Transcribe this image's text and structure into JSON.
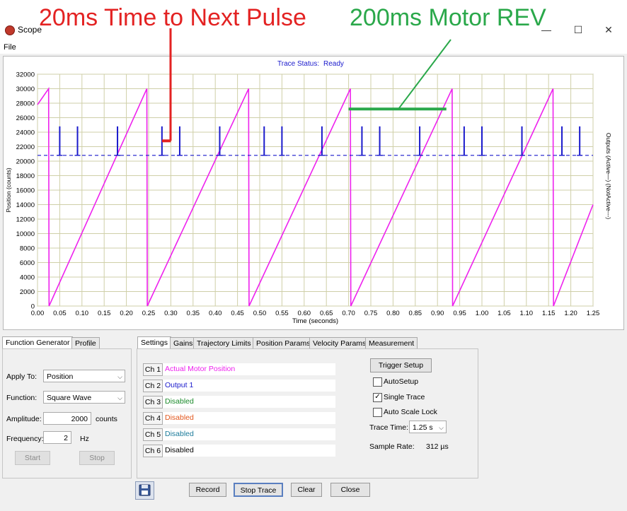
{
  "window": {
    "title": "Scope",
    "menu": [
      "File"
    ],
    "controls": [
      "—",
      "☐",
      "✕"
    ]
  },
  "annotations": {
    "left": "20ms Time to Next Pulse",
    "right": "200ms Motor REV",
    "left_color": "#e32222",
    "right_color": "#2aa84a"
  },
  "trace_status": {
    "label": "Trace Status:",
    "value": "Ready"
  },
  "chart_data": {
    "type": "line",
    "xlabel": "Time (seconds)",
    "ylabel": "Position (counts)",
    "y2label": "Outputs (Active—) (NotActive---)",
    "xlim": [
      0,
      1.25
    ],
    "ylim": [
      0,
      32000
    ],
    "x_ticks": [
      "0.00",
      "0.05",
      "0.10",
      "0.15",
      "0.20",
      "0.25",
      "0.30",
      "0.35",
      "0.40",
      "0.45",
      "0.50",
      "0.55",
      "0.60",
      "0.65",
      "0.70",
      "0.75",
      "0.80",
      "0.85",
      "0.90",
      "0.95",
      "1.00",
      "1.05",
      "1.10",
      "1.15",
      "1.20",
      "1.25"
    ],
    "y_ticks": [
      "0",
      "2000",
      "4000",
      "6000",
      "8000",
      "10000",
      "12000",
      "14000",
      "16000",
      "18000",
      "20000",
      "22000",
      "24000",
      "26000",
      "28000",
      "30000",
      "32000"
    ],
    "grid": true,
    "series": [
      {
        "name": "Actual Motor Position",
        "color": "#ee22ee",
        "points": [
          [
            0,
            27800
          ],
          [
            0.025,
            30000
          ],
          [
            0.026,
            0
          ],
          [
            0.246,
            30000
          ],
          [
            0.247,
            0
          ],
          [
            0.475,
            30000
          ],
          [
            0.476,
            0
          ],
          [
            0.704,
            30000
          ],
          [
            0.705,
            0
          ],
          [
            0.933,
            30000
          ],
          [
            0.934,
            0
          ],
          [
            1.16,
            30000
          ],
          [
            1.161,
            0
          ],
          [
            1.25,
            14000
          ]
        ]
      },
      {
        "name": "Output 1",
        "color": "#1a1acc",
        "baseline": 20800,
        "pulse_top": 24800,
        "pulse_times": [
          0.05,
          0.09,
          0.18,
          0.28,
          0.32,
          0.41,
          0.51,
          0.55,
          0.64,
          0.73,
          0.77,
          0.86,
          0.96,
          1.0,
          1.09,
          1.18,
          1.22
        ]
      }
    ]
  },
  "function_generator": {
    "tabs": [
      "Function Generator",
      "Profile"
    ],
    "apply_to_label": "Apply To:",
    "apply_to_value": "Position",
    "function_label": "Function:",
    "function_value": "Square Wave",
    "amplitude_label": "Amplitude:",
    "amplitude_value": "2000",
    "amplitude_unit": "counts",
    "frequency_label": "Frequency:",
    "frequency_value": "2",
    "frequency_unit": "Hz",
    "start_label": "Start",
    "stop_label": "Stop"
  },
  "settings": {
    "tabs": [
      "Settings",
      "Gains",
      "Trajectory Limits",
      "Position Params",
      "Velocity Params",
      "Measurement"
    ],
    "channels": [
      {
        "label": "Ch 1",
        "value": "Actual Motor Position",
        "color": "#ee22ee"
      },
      {
        "label": "Ch 2",
        "value": "Output 1",
        "color": "#1a1acc"
      },
      {
        "label": "Ch 3",
        "value": "Disabled",
        "color": "#1a8a2a"
      },
      {
        "label": "Ch 4",
        "value": "Disabled",
        "color": "#e2561c"
      },
      {
        "label": "Ch 5",
        "value": "Disabled",
        "color": "#1a7a9a"
      },
      {
        "label": "Ch 6",
        "value": "Disabled",
        "color": "#000000"
      }
    ],
    "trigger_setup": "Trigger Setup",
    "autosetup_label": "AutoSetup",
    "autosetup_checked": false,
    "single_trace_label": "Single Trace",
    "single_trace_checked": true,
    "auto_scale_lock_label": "Auto Scale Lock",
    "auto_scale_lock_checked": false,
    "trace_time_label": "Trace Time:",
    "trace_time_value": "1.25 s",
    "sample_rate_label": "Sample Rate:",
    "sample_rate_value": "312 µs"
  },
  "bottom_buttons": {
    "save_icon": "floppy-disk-icon",
    "record": "Record",
    "stop_trace": "Stop Trace",
    "clear": "Clear",
    "close": "Close"
  }
}
